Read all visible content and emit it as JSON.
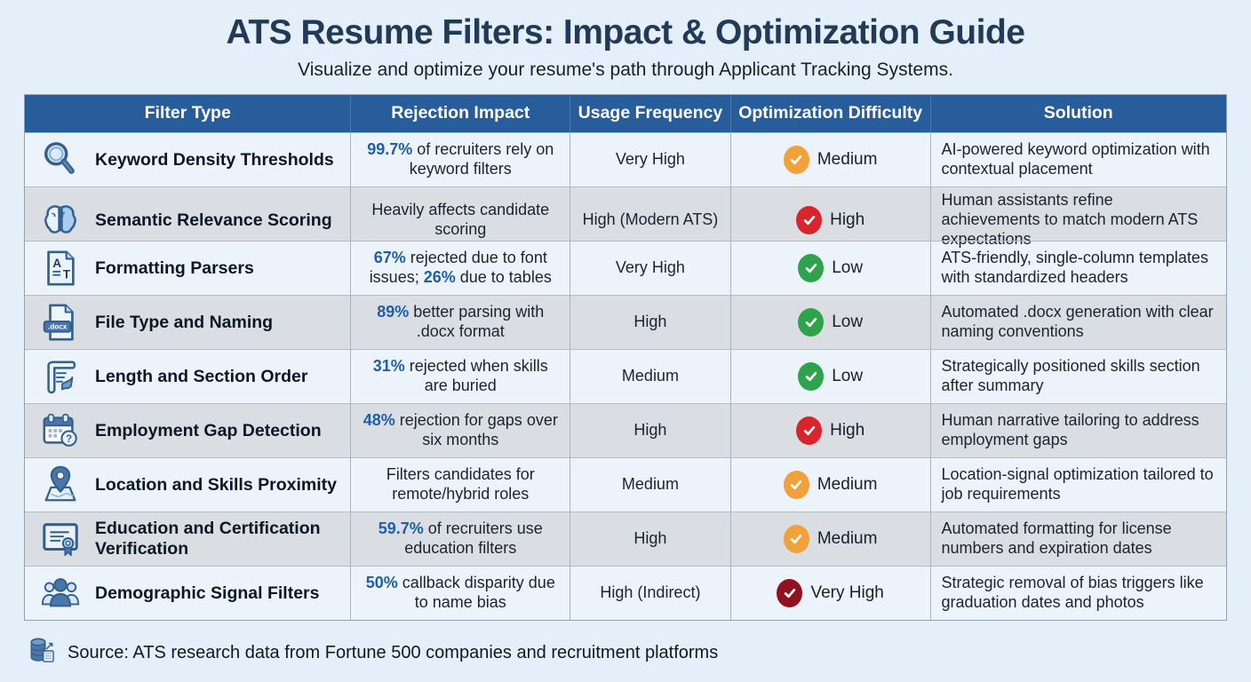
{
  "page": {
    "title": "ATS Resume Filters: Impact & Optimization Guide",
    "subtitle": "Visualize and optimize your resume's path through Applicant Tracking Systems.",
    "source_note": "Source: ATS research data from Fortune 500 companies and recruitment platforms",
    "source_icon": "database-chart-icon"
  },
  "colors": {
    "header_bg": "#275d9b",
    "row_odd": "#edf3fa",
    "row_even": "#dadde2",
    "stat_blue": "#1e5fa8",
    "difficulty": {
      "Low": "#2fa24c",
      "Medium": "#f1a13a",
      "High": "#d8242c",
      "Very High": "#8e1220"
    }
  },
  "table": {
    "columns": [
      "Filter Type",
      "Rejection Impact",
      "Usage Frequency",
      "Optimization Difficulty",
      "Solution"
    ],
    "rows": [
      {
        "icon": "search-icon",
        "filter_type": "Keyword Density Thresholds",
        "rejection_impact": [
          {
            "text": "99.7%",
            "highlight": true
          },
          {
            "text": " of recruiters rely on keyword filters",
            "highlight": false
          }
        ],
        "usage_frequency": "Very High",
        "difficulty": "Medium",
        "solution": "AI-powered keyword optimization with contextual placement"
      },
      {
        "icon": "brain-icon",
        "filter_type": "Semantic Relevance Scoring",
        "rejection_impact": [
          {
            "text": "Heavily affects candidate scoring",
            "highlight": false
          }
        ],
        "usage_frequency": "High (Modern ATS)",
        "difficulty": "High",
        "solution": "Human assistants refine achievements to match modern ATS expectations"
      },
      {
        "icon": "formatting-document-icon",
        "filter_type": "Formatting Parsers",
        "rejection_impact": [
          {
            "text": "67%",
            "highlight": true
          },
          {
            "text": " rejected due to font issues; ",
            "highlight": false
          },
          {
            "text": "26%",
            "highlight": true
          },
          {
            "text": " due to tables",
            "highlight": false
          }
        ],
        "usage_frequency": "Very High",
        "difficulty": "Low",
        "solution": "ATS-friendly, single-column templates with standardized headers"
      },
      {
        "icon": "docx-file-icon",
        "filter_type": "File Type and Naming",
        "rejection_impact": [
          {
            "text": "89%",
            "highlight": true
          },
          {
            "text": " better parsing with .docx format",
            "highlight": false
          }
        ],
        "usage_frequency": "High",
        "difficulty": "Low",
        "solution": "Automated .docx generation with clear naming conventions"
      },
      {
        "icon": "scroll-section-icon",
        "filter_type": "Length and Section Order",
        "rejection_impact": [
          {
            "text": "31%",
            "highlight": true
          },
          {
            "text": " rejected when skills are buried",
            "highlight": false
          }
        ],
        "usage_frequency": "Medium",
        "difficulty": "Low",
        "solution": "Strategically positioned skills section after summary"
      },
      {
        "icon": "calendar-question-icon",
        "filter_type": "Employment Gap Detection",
        "rejection_impact": [
          {
            "text": "48%",
            "highlight": true
          },
          {
            "text": " rejection for gaps over six months",
            "highlight": false
          }
        ],
        "usage_frequency": "High",
        "difficulty": "High",
        "solution": "Human narrative tailoring to address employment gaps"
      },
      {
        "icon": "map-pin-icon",
        "filter_type": "Location and Skills Proximity",
        "rejection_impact": [
          {
            "text": "Filters candidates for remote/hybrid roles",
            "highlight": false
          }
        ],
        "usage_frequency": "Medium",
        "difficulty": "Medium",
        "solution": "Location-signal optimization tailored to job requirements"
      },
      {
        "icon": "certificate-icon",
        "filter_type": "Education and Certification Verification",
        "rejection_impact": [
          {
            "text": "59.7%",
            "highlight": true
          },
          {
            "text": " of recruiters use education filters",
            "highlight": false
          }
        ],
        "usage_frequency": "High",
        "difficulty": "Medium",
        "solution": "Automated formatting for license numbers and expiration dates"
      },
      {
        "icon": "people-group-icon",
        "filter_type": "Demographic Signal Filters",
        "rejection_impact": [
          {
            "text": "50%",
            "highlight": true
          },
          {
            "text": " callback disparity due to name bias",
            "highlight": false
          }
        ],
        "usage_frequency": "High (Indirect)",
        "difficulty": "Very High",
        "solution": "Strategic removal of bias triggers like graduation dates and photos"
      }
    ]
  }
}
